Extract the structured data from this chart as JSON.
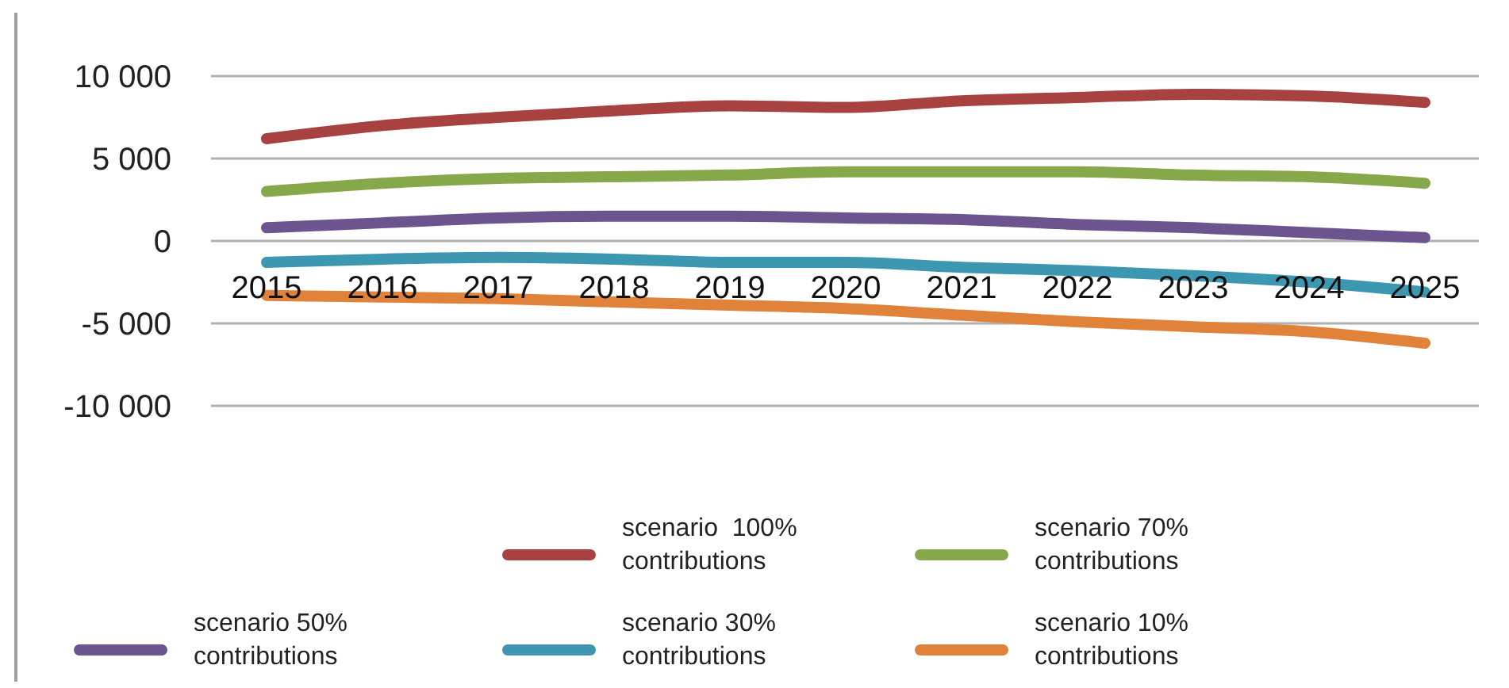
{
  "chart_data": {
    "type": "line",
    "categories": [
      "2015",
      "2016",
      "2017",
      "2018",
      "2019",
      "2020",
      "2021",
      "2022",
      "2023",
      "2024",
      "2025"
    ],
    "ylim": [
      -10000,
      10000
    ],
    "yticks": [
      {
        "value": -10000,
        "label": "-10 000"
      },
      {
        "value": -5000,
        "label": "-5 000"
      },
      0,
      {
        "value": 5000,
        "label": "5 000"
      },
      {
        "value": 10000,
        "label": "10 000"
      }
    ],
    "grid": "y",
    "legend": "bottom",
    "marker": "none",
    "line_style": "solid",
    "series": [
      {
        "name": "scenario  100% contributions",
        "color": "#a84240",
        "values": [
          6200,
          7000,
          7500,
          7900,
          8200,
          8100,
          8500,
          8700,
          8900,
          8800,
          8400
        ]
      },
      {
        "name": "scenario 70% contributions",
        "color": "#86a84a",
        "values": [
          3000,
          3500,
          3800,
          3900,
          4000,
          4200,
          4200,
          4200,
          4000,
          3900,
          3500
        ]
      },
      {
        "name": "scenario 50% contributions",
        "color": "#6c558f",
        "values": [
          800,
          1100,
          1400,
          1500,
          1500,
          1400,
          1300,
          1000,
          800,
          500,
          200
        ]
      },
      {
        "name": "scenario 30% contributions",
        "color": "#3d97b0",
        "values": [
          -1300,
          -1100,
          -1000,
          -1100,
          -1300,
          -1300,
          -1600,
          -1800,
          -2100,
          -2500,
          -3100
        ]
      },
      {
        "name": "scenario 10% contributions",
        "color": "#e0823a",
        "values": [
          -3300,
          -3400,
          -3500,
          -3700,
          -3900,
          -4100,
          -4500,
          -4900,
          -5200,
          -5500,
          -6200
        ]
      }
    ]
  }
}
